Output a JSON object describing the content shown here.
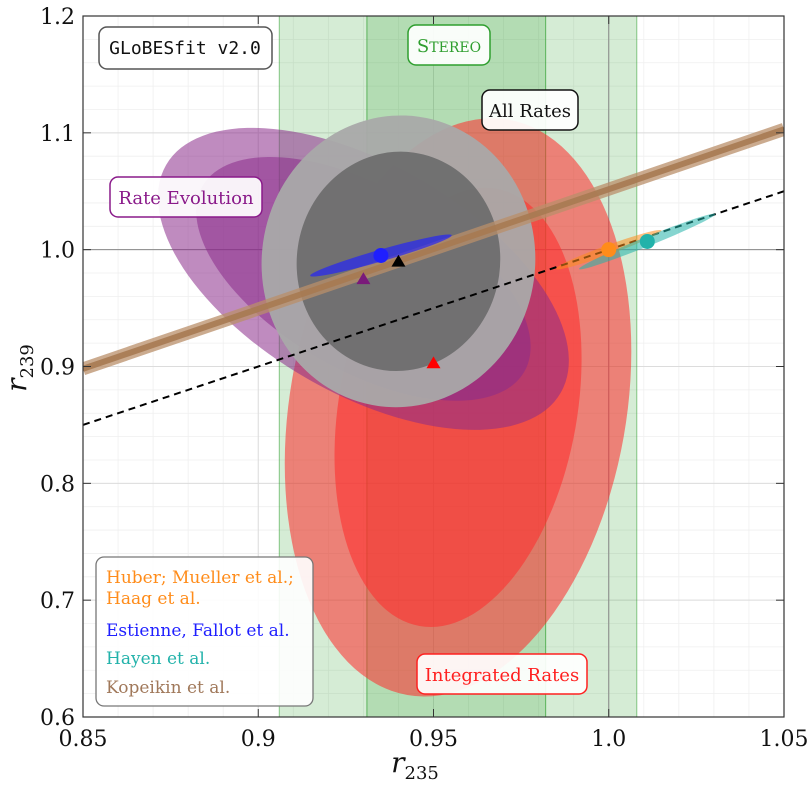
{
  "chart_data": {
    "type": "scatter",
    "xlabel": "r",
    "xlabel_sub": "235",
    "ylabel": "r",
    "ylabel_sub": "239",
    "xlim": [
      0.85,
      1.05
    ],
    "ylim": [
      0.6,
      1.2
    ],
    "x_ticks": [
      0.85,
      0.9,
      0.95,
      1.0,
      1.05
    ],
    "x_tick_labels": [
      "0.85",
      "0.9",
      "0.95",
      "1.0",
      "1.05"
    ],
    "y_ticks": [
      0.6,
      0.7,
      0.8,
      0.9,
      1.0,
      1.1,
      1.2
    ],
    "y_tick_labels": [
      "0.6",
      "0.7",
      "0.8",
      "0.9",
      "1.0",
      "1.1",
      "1.2"
    ],
    "grid": true,
    "reference_lines": {
      "x": 1.0,
      "y": 1.0
    },
    "title_box": "GLoBESfit v2.0",
    "stereo": {
      "label": "Stereo",
      "inner_range": [
        0.931,
        0.982
      ],
      "outer_range": [
        0.906,
        1.008
      ],
      "color": "#2e9e2e"
    },
    "regions": [
      {
        "label": "Rate Evolution",
        "color": "#8a2b8a",
        "center": [
          0.93,
          0.975
        ],
        "outer_semi_axes": [
          0.065,
          0.098
        ],
        "inner_semi_axes": [
          0.053,
          0.078
        ],
        "tilt_deg": 30
      },
      {
        "label": "Integrated Rates",
        "color": "#ff2a2a",
        "center": [
          0.957,
          0.865
        ],
        "outer_semi_axes": [
          0.048,
          0.25
        ],
        "inner_semi_axes": [
          0.034,
          0.19
        ],
        "tilt_deg": 10
      },
      {
        "label": "All Rates",
        "color": "#6e6e6e",
        "center": [
          0.94,
          0.99
        ],
        "outer_semi_axes": [
          0.039,
          0.125
        ],
        "inner_semi_axes": [
          0.029,
          0.094
        ],
        "tilt_deg": 8
      }
    ],
    "kopeikin_band": {
      "x": [
        0.85,
        1.05
      ],
      "y": [
        0.898,
        1.103
      ]
    },
    "dashed_line": {
      "x": [
        0.85,
        1.05
      ],
      "y": [
        0.85,
        1.05
      ]
    },
    "model_predictions": [
      {
        "name": "Huber; Mueller et al.; Haag et al.",
        "color": "#ff8c1a",
        "point": [
          1.0,
          1.0
        ]
      },
      {
        "name": "Estienne, Fallot et al.",
        "color": "#1f1fff",
        "point": [
          0.935,
          0.995
        ]
      },
      {
        "name": "Hayen et al.",
        "color": "#22b2aa",
        "point": [
          1.011,
          1.007
        ]
      }
    ],
    "best_fits": [
      {
        "region": "Rate Evolution",
        "point": [
          0.93,
          0.975
        ],
        "color": "#7a1a7a"
      },
      {
        "region": "All Rates",
        "point": [
          0.94,
          0.99
        ],
        "color": "#000000"
      },
      {
        "region": "Integrated Rates",
        "point": [
          0.95,
          0.903
        ],
        "color": "#ff0000"
      }
    ],
    "legend": [
      {
        "text": "Huber; Mueller et al.;",
        "color": "#ff8c1a"
      },
      {
        "text": "Haag et al.",
        "color": "#ff8c1a"
      },
      {
        "text": "Estienne, Fallot et al.",
        "color": "#1f1fff"
      },
      {
        "text": "Hayen et al.",
        "color": "#22b2aa"
      },
      {
        "text": "Kopeikin et al.",
        "color": "#a0785a"
      }
    ]
  }
}
